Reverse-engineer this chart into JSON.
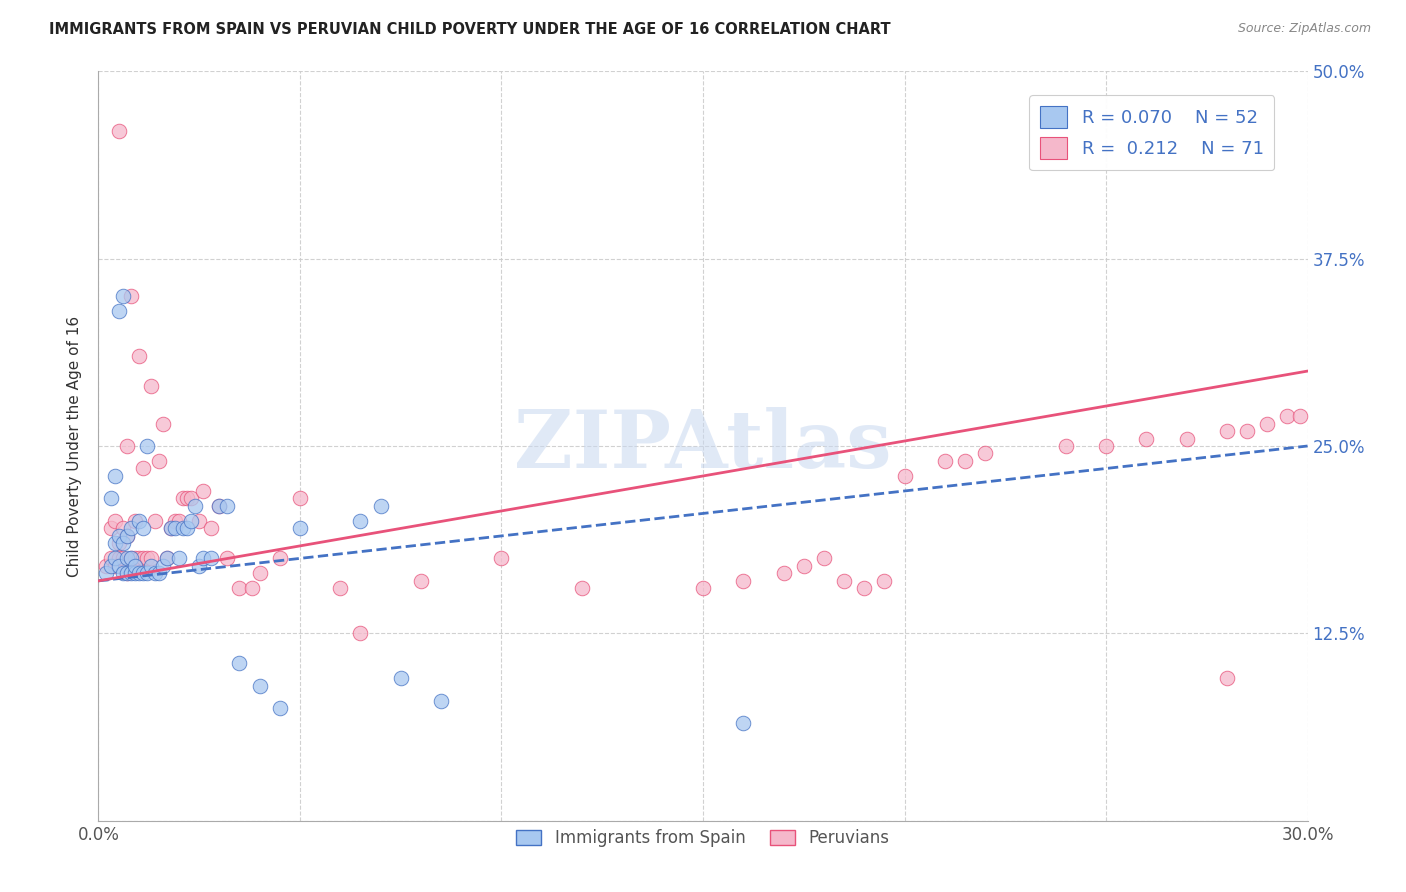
{
  "title": "IMMIGRANTS FROM SPAIN VS PERUVIAN CHILD POVERTY UNDER THE AGE OF 16 CORRELATION CHART",
  "source": "Source: ZipAtlas.com",
  "ylabel": "Child Poverty Under the Age of 16",
  "xlim": [
    0.0,
    0.3
  ],
  "ylim": [
    0.0,
    0.5
  ],
  "legend_r1": "R = 0.070",
  "legend_n1": "N = 52",
  "legend_r2": "R =  0.212",
  "legend_n2": "N = 71",
  "blue_color": "#A8C8F0",
  "pink_color": "#F5B8CB",
  "blue_line_color": "#4472C4",
  "pink_line_color": "#E8527A",
  "watermark": "ZIPAtlas",
  "watermark_color": "#C8D8F0",
  "blue_trend": [
    0.16,
    0.25
  ],
  "pink_trend": [
    0.16,
    0.3
  ],
  "blue_scatter_x": [
    0.002,
    0.003,
    0.003,
    0.004,
    0.004,
    0.004,
    0.005,
    0.005,
    0.005,
    0.006,
    0.006,
    0.006,
    0.007,
    0.007,
    0.007,
    0.008,
    0.008,
    0.008,
    0.009,
    0.009,
    0.01,
    0.01,
    0.011,
    0.011,
    0.012,
    0.012,
    0.013,
    0.014,
    0.015,
    0.016,
    0.017,
    0.018,
    0.019,
    0.02,
    0.021,
    0.022,
    0.023,
    0.024,
    0.025,
    0.026,
    0.028,
    0.03,
    0.032,
    0.035,
    0.04,
    0.045,
    0.05,
    0.065,
    0.07,
    0.075,
    0.085,
    0.16
  ],
  "blue_scatter_y": [
    0.165,
    0.17,
    0.215,
    0.175,
    0.185,
    0.23,
    0.17,
    0.19,
    0.34,
    0.165,
    0.185,
    0.35,
    0.165,
    0.175,
    0.19,
    0.165,
    0.175,
    0.195,
    0.165,
    0.17,
    0.165,
    0.2,
    0.165,
    0.195,
    0.165,
    0.25,
    0.17,
    0.165,
    0.165,
    0.17,
    0.175,
    0.195,
    0.195,
    0.175,
    0.195,
    0.195,
    0.2,
    0.21,
    0.17,
    0.175,
    0.175,
    0.21,
    0.21,
    0.105,
    0.09,
    0.075,
    0.195,
    0.2,
    0.21,
    0.095,
    0.08,
    0.065
  ],
  "pink_scatter_x": [
    0.002,
    0.003,
    0.003,
    0.004,
    0.004,
    0.005,
    0.005,
    0.005,
    0.006,
    0.006,
    0.007,
    0.007,
    0.007,
    0.008,
    0.008,
    0.009,
    0.009,
    0.01,
    0.01,
    0.011,
    0.011,
    0.012,
    0.013,
    0.013,
    0.014,
    0.015,
    0.016,
    0.017,
    0.018,
    0.019,
    0.02,
    0.021,
    0.022,
    0.023,
    0.025,
    0.026,
    0.028,
    0.03,
    0.032,
    0.035,
    0.038,
    0.04,
    0.045,
    0.05,
    0.06,
    0.065,
    0.08,
    0.1,
    0.12,
    0.15,
    0.16,
    0.17,
    0.175,
    0.18,
    0.185,
    0.19,
    0.195,
    0.2,
    0.21,
    0.215,
    0.22,
    0.24,
    0.25,
    0.26,
    0.27,
    0.28,
    0.285,
    0.29,
    0.295,
    0.298,
    0.28
  ],
  "pink_scatter_y": [
    0.17,
    0.175,
    0.195,
    0.17,
    0.2,
    0.175,
    0.185,
    0.46,
    0.175,
    0.195,
    0.165,
    0.19,
    0.25,
    0.175,
    0.35,
    0.175,
    0.2,
    0.175,
    0.31,
    0.175,
    0.235,
    0.175,
    0.175,
    0.29,
    0.2,
    0.24,
    0.265,
    0.175,
    0.195,
    0.2,
    0.2,
    0.215,
    0.215,
    0.215,
    0.2,
    0.22,
    0.195,
    0.21,
    0.175,
    0.155,
    0.155,
    0.165,
    0.175,
    0.215,
    0.155,
    0.125,
    0.16,
    0.175,
    0.155,
    0.155,
    0.16,
    0.165,
    0.17,
    0.175,
    0.16,
    0.155,
    0.16,
    0.23,
    0.24,
    0.24,
    0.245,
    0.25,
    0.25,
    0.255,
    0.255,
    0.26,
    0.26,
    0.265,
    0.27,
    0.27,
    0.095
  ]
}
